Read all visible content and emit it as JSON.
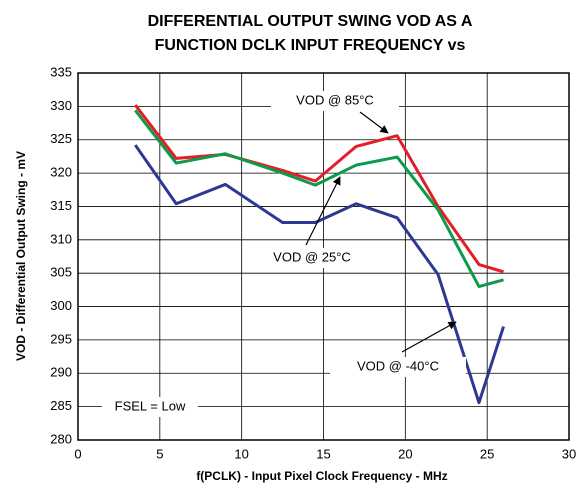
{
  "chart_data": {
    "type": "line",
    "title": [
      "DIFFERENTIAL OUTPUT SWING VOD AS A",
      "FUNCTION DCLK INPUT FREQUENCY vs"
    ],
    "x_label": "f(PCLK) - Input Pixel Clock Frequency - MHz",
    "y_label": "VOD - Differential Output Swing - mV",
    "annotation": "FSEL = Low",
    "x": [
      3.5,
      6,
      9,
      12.5,
      14.5,
      17,
      19.5,
      22,
      24.5,
      26
    ],
    "series": [
      {
        "name": "VOD @ 85°C",
        "color": "#e31e26",
        "values": [
          330.2,
          322.2,
          322.8,
          320.4,
          318.8,
          324,
          325.6,
          315,
          306.3,
          305.2
        ]
      },
      {
        "name": "VOD @ 25°C",
        "color": "#0d9a4a",
        "values": [
          329.4,
          321.5,
          322.9,
          320,
          318.2,
          321.2,
          322.4,
          314.5,
          303,
          304
        ]
      },
      {
        "name": "VOD @ -40°C",
        "color": "#2b3990",
        "values": [
          324.2,
          315.4,
          318.3,
          312.6,
          312.6,
          315.4,
          313.3,
          304.8,
          285.6,
          297
        ]
      }
    ],
    "xlim": [
      0,
      30
    ],
    "xticks": [
      0,
      5,
      10,
      15,
      20,
      25,
      30
    ],
    "ylim": [
      280,
      335
    ],
    "yticks": [
      280,
      285,
      290,
      295,
      300,
      305,
      310,
      315,
      320,
      325,
      330,
      335
    ],
    "grid": true
  }
}
